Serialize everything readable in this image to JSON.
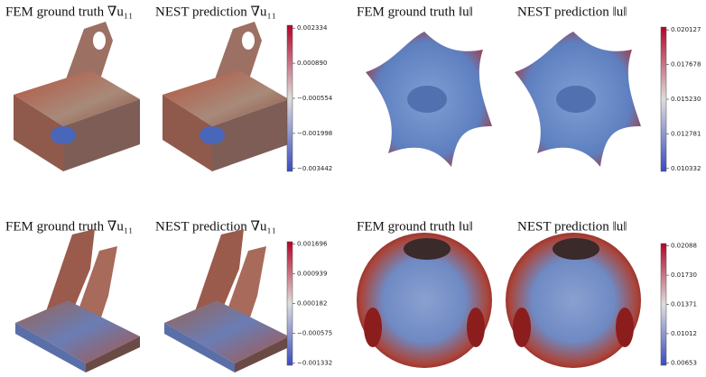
{
  "panels": [
    {
      "titles": [
        "FEM ground truth ∇u₁₁",
        "NEST prediction ∇u₁₁"
      ],
      "colorbar_ticks": [
        "0.002334",
        "0.000890",
        "−0.000554",
        "−0.001998",
        "−0.003442"
      ]
    },
    {
      "titles": [
        "FEM ground truth ‖u‖",
        "NEST prediction ‖u‖"
      ],
      "colorbar_ticks": [
        "0.020127",
        "0.017678",
        "0.015230",
        "0.012781",
        "0.010332"
      ]
    },
    {
      "titles": [
        "FEM ground truth ∇u₁₁",
        "NEST prediction ∇u₁₁"
      ],
      "colorbar_ticks": [
        "0.001696",
        "0.000939",
        "0.000182",
        "−0.000575",
        "−0.001332"
      ]
    },
    {
      "titles": [
        "FEM ground truth ‖u‖",
        "NEST prediction ‖u‖"
      ],
      "colorbar_ticks": [
        "0.02088",
        "0.01730",
        "0.01371",
        "0.01012",
        "0.00653"
      ]
    }
  ]
}
